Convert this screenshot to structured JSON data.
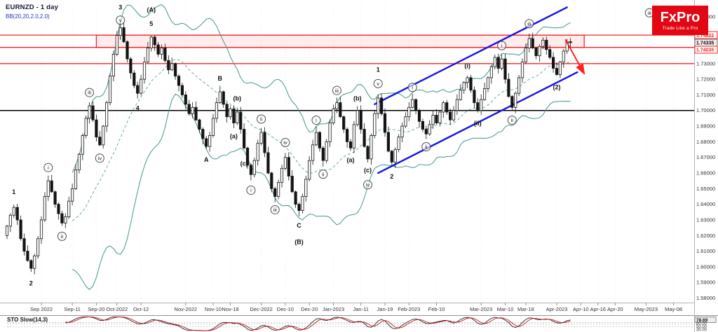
{
  "header": {
    "symbol_title": "EURNZD - 1 day",
    "indicator_label": "BB(20,20,2.0,2.0)"
  },
  "logo": {
    "brand": "FxPro",
    "tagline": "Trade Like a Pro",
    "bg_color": "#e30613"
  },
  "colors": {
    "background": "#ffffff",
    "candle": "#141414",
    "candle_up_fill": "#ffffff",
    "bollinger": "#3f9690",
    "channel": "#1414e8",
    "level_red": "#ff2020",
    "level_black": "#000000",
    "zone_fill": "rgba(255,40,40,0.09)",
    "sto_k": "#222222",
    "sto_d": "#cc1414",
    "indicator_text": "#2233bb",
    "axis_text": "#333333"
  },
  "chart_data": {
    "type": "candlestick",
    "title": "EURNZD - 1 day",
    "x_unit": "trading-day",
    "price_axis": {
      "scale_top": 1.768,
      "scale_bottom": 1.578,
      "label_max": 1.76,
      "label_min": 1.58,
      "step": 0.01,
      "highlight_boxes": [
        {
          "value": "1.74822",
          "style": "red"
        },
        {
          "value": "1.74335",
          "style": "gray"
        },
        {
          "value": "1.74035",
          "style": "red"
        }
      ]
    },
    "time_ticks": [
      {
        "label": "Sep 2022",
        "day": 10
      },
      {
        "label": "Sep-11",
        "day": 19
      },
      {
        "label": "Sep-20",
        "day": 26
      },
      {
        "label": "Oct-2022",
        "day": 32
      },
      {
        "label": "Oct-12",
        "day": 39
      },
      {
        "label": "Nov-2022",
        "day": 52
      },
      {
        "label": "Nov-10",
        "day": 60
      },
      {
        "label": "Nov-18",
        "day": 65
      },
      {
        "label": "Dec-2022",
        "day": 74
      },
      {
        "label": "Dec-10",
        "day": 81
      },
      {
        "label": "Dec-20",
        "day": 88
      },
      {
        "label": "Jan-2023",
        "day": 95
      },
      {
        "label": "Jan-11",
        "day": 103
      },
      {
        "label": "Jan-19",
        "day": 110
      },
      {
        "label": "Feb-2023",
        "day": 117
      },
      {
        "label": "Feb-10",
        "day": 125
      },
      {
        "label": "Mar-2023",
        "day": 138
      },
      {
        "label": "Mar-10",
        "day": 145
      },
      {
        "label": "Mar-18",
        "day": 151
      },
      {
        "label": "Apr-2023",
        "day": 160
      },
      {
        "label": "Apr-10",
        "day": 167
      },
      {
        "label": "Apr-16",
        "day": 172
      },
      {
        "label": "Apr-20",
        "day": 177
      },
      {
        "label": "May-2023",
        "day": 186
      },
      {
        "label": "May-08",
        "day": 194
      }
    ],
    "first_open": 1.62,
    "closes": [
      1.626,
      1.633,
      1.638,
      1.63,
      1.618,
      1.61,
      1.604,
      1.599,
      1.607,
      1.618,
      1.63,
      1.645,
      1.655,
      1.648,
      1.64,
      1.634,
      1.628,
      1.632,
      1.642,
      1.65,
      1.662,
      1.672,
      1.684,
      1.695,
      1.703,
      1.694,
      1.683,
      1.678,
      1.69,
      1.705,
      1.722,
      1.736,
      1.748,
      1.753,
      1.744,
      1.733,
      1.724,
      1.716,
      1.711,
      1.72,
      1.731,
      1.74,
      1.747,
      1.742,
      1.736,
      1.74,
      1.732,
      1.726,
      1.73,
      1.722,
      1.716,
      1.71,
      1.704,
      1.698,
      1.702,
      1.694,
      1.688,
      1.682,
      1.677,
      1.684,
      1.695,
      1.705,
      1.712,
      1.704,
      1.696,
      1.701,
      1.692,
      1.699,
      1.688,
      1.676,
      1.665,
      1.659,
      1.668,
      1.679,
      1.686,
      1.673,
      1.66,
      1.65,
      1.645,
      1.654,
      1.663,
      1.67,
      1.658,
      1.648,
      1.64,
      1.636,
      1.645,
      1.656,
      1.668,
      1.678,
      1.686,
      1.676,
      1.668,
      1.68,
      1.692,
      1.701,
      1.705,
      1.696,
      1.688,
      1.68,
      1.676,
      1.691,
      1.7,
      1.688,
      1.677,
      1.669,
      1.684,
      1.698,
      1.708,
      1.698,
      1.686,
      1.674,
      1.667,
      1.675,
      1.683,
      1.69,
      1.696,
      1.702,
      1.707,
      1.7,
      1.693,
      1.688,
      1.685,
      1.691,
      1.697,
      1.692,
      1.699,
      1.705,
      1.699,
      1.694,
      1.7,
      1.707,
      1.713,
      1.718,
      1.721,
      1.713,
      1.705,
      1.7,
      1.707,
      1.714,
      1.721,
      1.728,
      1.734,
      1.727,
      1.733,
      1.72,
      1.709,
      1.702,
      1.711,
      1.721,
      1.731,
      1.74,
      1.746,
      1.74,
      1.735,
      1.741,
      1.745,
      1.739,
      1.734,
      1.727,
      1.723,
      1.731,
      1.738,
      1.744,
      1.7434
    ],
    "levels": [
      {
        "price": 1.74822,
        "color": "red"
      },
      {
        "price": 1.74035,
        "color": "red"
      },
      {
        "price": 1.73,
        "color": "red"
      },
      {
        "price": 1.7,
        "color": "black"
      }
    ],
    "zone": {
      "price_top": 1.74822,
      "price_bottom": 1.74035,
      "day_start": 26,
      "day_end": 168
    },
    "channel": {
      "upper": {
        "d1": 107,
        "p1": 1.704,
        "d2": 163,
        "p2": 1.766
      },
      "lower": {
        "d1": 108,
        "p1": 1.66,
        "d2": 166,
        "p2": 1.7245
      }
    },
    "arrow": {
      "d1": 162.5,
      "p1": 1.7455,
      "d2": 168,
      "p2": 1.7235
    },
    "annotations": [
      {
        "t": "1",
        "d": 2,
        "p": 1.648,
        "s": "plain"
      },
      {
        "t": "2",
        "d": 7,
        "p": 1.5895,
        "s": "plain"
      },
      {
        "t": "i",
        "d": 12,
        "p": 1.6635,
        "s": "circle"
      },
      {
        "t": "ii",
        "d": 16,
        "p": 1.6195,
        "s": "circle"
      },
      {
        "t": "iii",
        "d": 24,
        "p": 1.7115,
        "s": "circle"
      },
      {
        "t": "iv",
        "d": 27,
        "p": 1.6695,
        "s": "circle"
      },
      {
        "t": "v",
        "d": 33,
        "p": 1.7578,
        "s": "circle"
      },
      {
        "t": "3",
        "d": 33,
        "p": 1.766,
        "s": "plain"
      },
      {
        "t": "4",
        "d": 38,
        "p": 1.7015,
        "s": "plain"
      },
      {
        "t": "(A)",
        "d": 42,
        "p": 1.7645,
        "s": "plain"
      },
      {
        "t": "5",
        "d": 42,
        "p": 1.7555,
        "s": "plain"
      },
      {
        "t": "A",
        "d": 58,
        "p": 1.6685,
        "s": "plain"
      },
      {
        "t": "B",
        "d": 62,
        "p": 1.7205,
        "s": "plain"
      },
      {
        "t": "(a)",
        "d": 66,
        "p": 1.6835,
        "s": "plain"
      },
      {
        "t": "(b)",
        "d": 67,
        "p": 1.7078,
        "s": "plain"
      },
      {
        "t": "(c)",
        "d": 69,
        "p": 1.666,
        "s": "plain"
      },
      {
        "t": "i",
        "d": 71,
        "p": 1.649,
        "s": "circle"
      },
      {
        "t": "ii",
        "d": 74,
        "p": 1.6945,
        "s": "circle"
      },
      {
        "t": "iii",
        "d": 78,
        "p": 1.6365,
        "s": "circle"
      },
      {
        "t": "iv",
        "d": 81,
        "p": 1.6795,
        "s": "circle"
      },
      {
        "t": "C",
        "d": 85,
        "p": 1.6265,
        "s": "plain"
      },
      {
        "t": "(B)",
        "d": 85,
        "p": 1.6158,
        "s": "plain"
      },
      {
        "t": "i",
        "d": 90,
        "p": 1.6938,
        "s": "circle"
      },
      {
        "t": "ii",
        "d": 92,
        "p": 1.6592,
        "s": "circle"
      },
      {
        "t": "iii",
        "d": 96,
        "p": 1.7128,
        "s": "circle"
      },
      {
        "t": "(a)",
        "d": 100,
        "p": 1.6682,
        "s": "plain"
      },
      {
        "t": "(b)",
        "d": 102,
        "p": 1.7078,
        "s": "plain"
      },
      {
        "t": "(c)",
        "d": 105,
        "p": 1.6618,
        "s": "plain"
      },
      {
        "t": "iv",
        "d": 105,
        "p": 1.6525,
        "s": "circle"
      },
      {
        "t": "v",
        "d": 108,
        "p": 1.7172,
        "s": "circle"
      },
      {
        "t": "1",
        "d": 108,
        "p": 1.7262,
        "s": "plain"
      },
      {
        "t": "2",
        "d": 112,
        "p": 1.6578,
        "s": "plain"
      },
      {
        "t": "i",
        "d": 118,
        "p": 1.7148,
        "s": "circle"
      },
      {
        "t": "ii",
        "d": 122,
        "p": 1.6768,
        "s": "circle"
      },
      {
        "t": "(i)",
        "d": 134,
        "p": 1.7285,
        "s": "plain"
      },
      {
        "t": "(ii)",
        "d": 137,
        "p": 1.6918,
        "s": "plain"
      },
      {
        "t": "i",
        "d": 144,
        "p": 1.7415,
        "s": "circle"
      },
      {
        "t": "ii",
        "d": 147,
        "p": 1.6938,
        "s": "circle"
      },
      {
        "t": "iii",
        "d": 152,
        "p": 1.7555,
        "s": "circle"
      },
      {
        "t": "(2)",
        "d": 160,
        "p": 1.7148,
        "s": "plain"
      },
      {
        "t": "iii",
        "d": 187,
        "p": 1.7625,
        "s": "circle"
      }
    ],
    "indicators": {
      "bollinger": {
        "period": 20,
        "deviation": 2
      },
      "stochastic": {
        "label": "STO Slow(14,3)",
        "current": "78.69",
        "gridlines": [
          60,
          50,
          30
        ],
        "grid_labels": [
          "60.00",
          "50.00",
          "30.00"
        ]
      }
    }
  }
}
